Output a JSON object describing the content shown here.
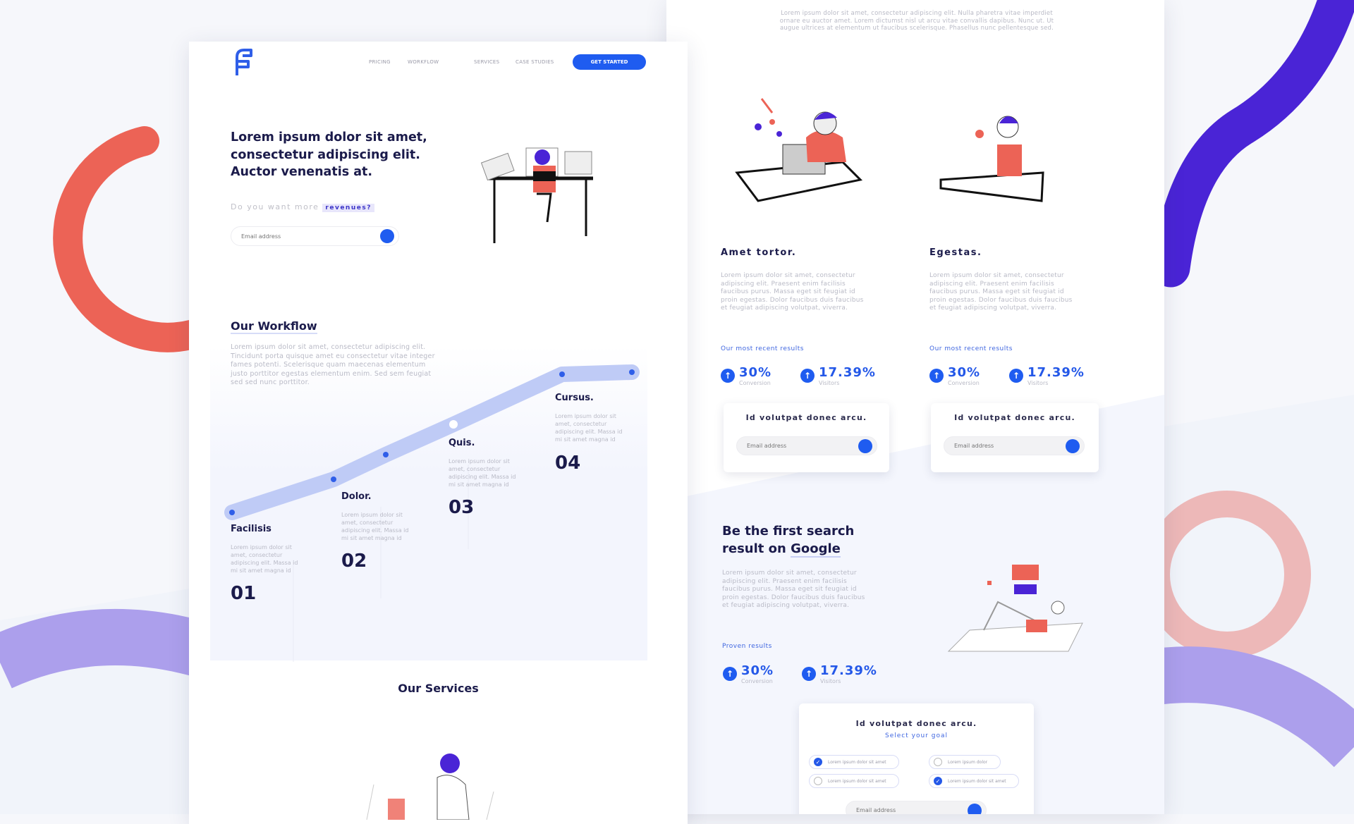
{
  "colors": {
    "accent": "#1f5cf0",
    "navy": "#1b1b4b",
    "coral": "#ec6356",
    "purple": "#4a24d6"
  },
  "left_page": {
    "logo_icon": "f-logo-icon",
    "nav": [
      "PRICING",
      "WORKFLOW",
      "SERVICES",
      "CASE STUDIES"
    ],
    "cta": "GET STARTED",
    "hero": {
      "line1": "Lorem ipsum dolor sit amet,",
      "line2": "consectetur adipiscing elit.",
      "line3": "Auctor venenatis at.",
      "question": "Do you want more",
      "highlight": "revenues?",
      "email_placeholder": "Email address"
    },
    "workflow": {
      "title": "Our Workflow",
      "text": "Lorem ipsum dolor sit amet, consectetur adipiscing elit. Tincidunt porta quisque amet eu consectetur vitae integer fames potenti. Scelerisque quam maecenas elementum justo porttitor egestas elementum enim. Sed sem feugiat sed sed nunc porttitor.",
      "steps": [
        {
          "title": "Facilisis",
          "text": "Lorem ipsum dolor sit amet, consectetur adipiscing elit. Massa id mi sit amet magna id",
          "num": "01"
        },
        {
          "title": "Dolor.",
          "text": "Lorem ipsum dolor sit amet, consectetur adipiscing elit. Massa id mi sit amet magna id",
          "num": "02"
        },
        {
          "title": "Quis.",
          "text": "Lorem ipsum dolor sit amet, consectetur adipiscing elit. Massa id mi sit amet magna id",
          "num": "03"
        },
        {
          "title": "Cursus.",
          "text": "Lorem ipsum dolor sit amet, consectetur adipiscing elit. Massa id mi sit amet magna id",
          "num": "04"
        }
      ]
    },
    "services_title": "Our Services"
  },
  "right_page": {
    "intro": "Lorem ipsum dolor sit amet, consectetur adipiscing elit. Nulla pharetra vitae imperdiet ornare eu auctor amet. Lorem dictumst nisl ut arcu vitae convallis dapibus. Nunc ut. Ut augue ultrices at elementum ut faucibus scelerisque. Phasellus nunc pellentesque sed.",
    "columns": [
      {
        "title": "Amet tortor.",
        "text": "Lorem ipsum dolor sit amet, consectetur adipiscing elit. Praesent enim facilisis faucibus purus. Massa eget sit feugiat id proin egestas. Dolor faucibus duis faucibus et feugiat adipiscing volutpat, viverra.",
        "results": "Our most recent results",
        "stats": [
          {
            "value": "30%",
            "label": "Conversion"
          },
          {
            "value": "17.39%",
            "label": "Visitors"
          }
        ],
        "card_title": "Id volutpat donec arcu.",
        "email_placeholder": "Email address"
      },
      {
        "title": "Egestas.",
        "text": "Lorem ipsum dolor sit amet, consectetur adipiscing elit. Praesent enim facilisis faucibus purus. Massa eget sit feugiat id proin egestas. Dolor faucibus duis faucibus et feugiat adipiscing volutpat, viverra.",
        "results": "Our most recent results",
        "stats": [
          {
            "value": "30%",
            "label": "Conversion"
          },
          {
            "value": "17.39%",
            "label": "Visitors"
          }
        ],
        "card_title": "Id volutpat donec arcu.",
        "email_placeholder": "Email address"
      }
    ],
    "google": {
      "line1": "Be the first search",
      "line2": "result on",
      "highlight": "Google",
      "text": "Lorem ipsum dolor sit amet, consectetur adipiscing elit. Praesent enim facilisis faucibus purus. Massa eget sit feugiat id proin egestas. Dolor faucibus duis faucibus et feugiat adipiscing volutpat, viverra.",
      "results": "Proven results",
      "stats": [
        {
          "value": "30%",
          "label": "Conversion"
        },
        {
          "value": "17.39%",
          "label": "Visitors"
        }
      ]
    },
    "goal_card": {
      "title": "Id volutpat donec arcu.",
      "subtitle": "Select your goal",
      "options": [
        {
          "label": "Lorem ipsum dolor sit amet",
          "checked": true
        },
        {
          "label": "Lorem ipsum dolor",
          "checked": false
        },
        {
          "label": "Lorem ipsum dolor sit amet",
          "checked": false
        },
        {
          "label": "Lorem ipsum dolor sit amet",
          "checked": true
        }
      ],
      "email_placeholder": "Email address"
    }
  }
}
